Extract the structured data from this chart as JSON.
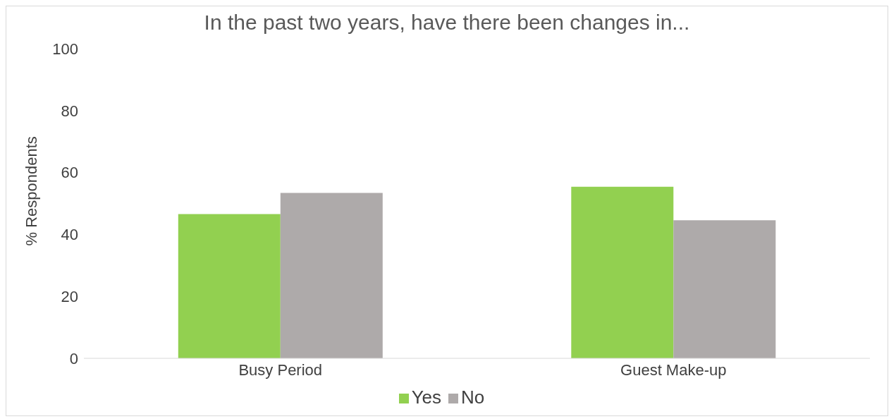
{
  "chart_data": {
    "type": "bar",
    "title": "In the past two years, have there been changes in...",
    "ylabel": "% Respondents",
    "categories": [
      "Busy Period",
      "Guest Make-up"
    ],
    "series": [
      {
        "name": "Yes",
        "color": "#92d050",
        "values": [
          46.6,
          55.4
        ]
      },
      {
        "name": "No",
        "color": "#aeaaaa",
        "values": [
          53.4,
          44.6
        ]
      }
    ],
    "ylim": [
      0,
      100
    ],
    "yticks": [
      0,
      20,
      40,
      60,
      80,
      100
    ],
    "grid": false,
    "legend": "bottom"
  }
}
